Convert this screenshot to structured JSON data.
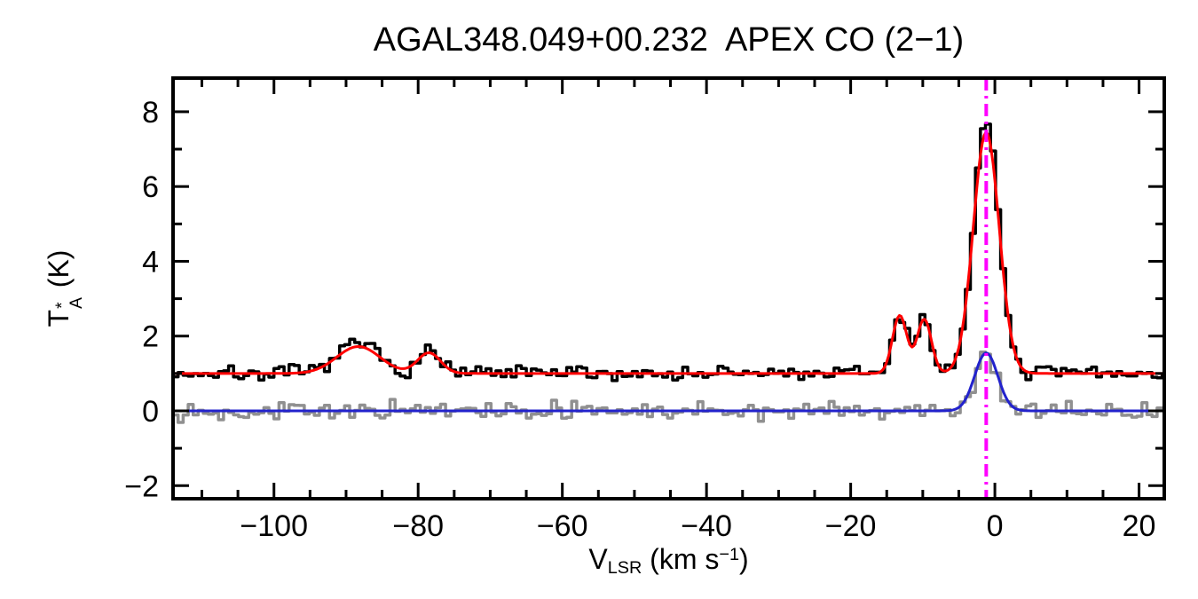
{
  "chart_data": {
    "type": "line",
    "title": "AGAL348.049+00.232  APEX CO (2−1)",
    "xlabel_parts": {
      "symbol": "V",
      "sub": "LSR",
      "unit_open": " (km s",
      "sup": "−1",
      "unit_close": ")"
    },
    "ylabel_parts": {
      "symbol": "T",
      "sup": "*",
      "sub": "A",
      "unit": " (K)"
    },
    "xlim": [
      -114,
      23.5
    ],
    "ylim": [
      -2.35,
      8.9
    ],
    "x_ticks": [
      {
        "v": -100,
        "label": "−100"
      },
      {
        "v": -80,
        "label": "−80"
      },
      {
        "v": -60,
        "label": "−60"
      },
      {
        "v": -40,
        "label": "−40"
      },
      {
        "v": -20,
        "label": "−20"
      },
      {
        "v": 0,
        "label": "0"
      },
      {
        "v": 20,
        "label": "20"
      }
    ],
    "x_minor_step": 5,
    "y_ticks": [
      {
        "v": -2,
        "label": "−2"
      },
      {
        "v": 0,
        "label": "0"
      },
      {
        "v": 2,
        "label": "2"
      },
      {
        "v": 4,
        "label": "4"
      },
      {
        "v": 6,
        "label": "6"
      },
      {
        "v": 8,
        "label": "8"
      }
    ],
    "y_minor_step": 1,
    "axes_color": "#000000",
    "background": "#ffffff",
    "legend": "none",
    "grid": false,
    "series": [
      {
        "name": "residual-spectrum",
        "style": "histogram",
        "color": "#909090",
        "width": 3.5,
        "baseline": 0.0,
        "noise_rms": 0.11,
        "seed": 13,
        "bin": 0.7,
        "gaussians": [
          {
            "center": -1.2,
            "amp": 1.5,
            "sigma": 1.6
          }
        ]
      },
      {
        "name": "residual-fit",
        "style": "smooth",
        "color": "#2222cc",
        "width": 3,
        "baseline": 0.0,
        "gaussians": [
          {
            "center": -1.2,
            "amp": 1.55,
            "sigma": 1.6
          }
        ]
      },
      {
        "name": "observed-spectrum",
        "style": "histogram",
        "color": "#000000",
        "width": 3.5,
        "baseline": 1.0,
        "noise_rms": 0.1,
        "seed": 7,
        "bin": 0.7,
        "gaussians": [
          {
            "center": -88.3,
            "amp": 0.8,
            "sigma": 2.8
          },
          {
            "center": -78.5,
            "amp": 0.6,
            "sigma": 1.5
          },
          {
            "center": -13.2,
            "amp": 1.6,
            "sigma": 1.0
          },
          {
            "center": -9.8,
            "amp": 1.5,
            "sigma": 1.0
          },
          {
            "center": -1.2,
            "amp": 6.6,
            "sigma": 1.8
          }
        ]
      },
      {
        "name": "gaussian-fit",
        "style": "smooth",
        "color": "#ff0000",
        "width": 3,
        "baseline": 1.0,
        "gaussians": [
          {
            "center": -88.3,
            "amp": 0.72,
            "sigma": 3.0
          },
          {
            "center": -78.5,
            "amp": 0.55,
            "sigma": 1.6
          },
          {
            "center": -13.2,
            "amp": 1.55,
            "sigma": 1.0
          },
          {
            "center": -9.8,
            "amp": 1.45,
            "sigma": 1.0
          },
          {
            "center": -1.2,
            "amp": 6.45,
            "sigma": 1.8
          }
        ]
      }
    ],
    "peaks_summary": [
      {
        "v_lsr": -88.3,
        "peak_K": 1.8
      },
      {
        "v_lsr": -78.5,
        "peak_K": 1.6
      },
      {
        "v_lsr": -13.2,
        "peak_K": 2.6
      },
      {
        "v_lsr": -9.8,
        "peak_K": 2.5
      },
      {
        "v_lsr": -1.2,
        "peak_K": 7.5
      }
    ],
    "vline": {
      "x": -1.2,
      "color": "#ff00ff",
      "width": 4,
      "dash": [
        14,
        6,
        3,
        6
      ]
    }
  }
}
